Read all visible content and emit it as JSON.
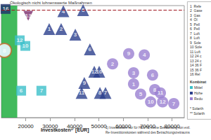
{
  "chart_data": {
    "type": "scatter",
    "annotation": "Ökologisch nicht lohnenswerte Maßnahmen",
    "x_label": "Investkosten¹⁾ [EUR]",
    "footnote": [
      "1) Investkosten nur für HEUTE, keine Betrachtung von evtl.",
      "Re-Investitionskosten während des Betrachtungszeitraums"
    ],
    "xlim": [
      10000,
      85000
    ],
    "xticks": [
      20000,
      30000,
      40000,
      50000,
      60000,
      70000,
      80000
    ],
    "ylim": [
      0,
      100
    ],
    "tick_labels": "x",
    "grid": false,
    "threshold_line": {
      "y": 96,
      "color": "#a0141e",
      "line_style": "dashed"
    },
    "band": {
      "x": [
        10000,
        16500
      ],
      "color": "#2db34a"
    },
    "series": [
      {
        "marker": "triangle",
        "color": "#2b3f8c",
        "values": [
          [
            35400,
            95
          ],
          [
            43500,
            96
          ],
          [
            29600,
            79
          ],
          [
            34500,
            79
          ],
          [
            40300,
            74
          ],
          [
            46300,
            61
          ],
          [
            48100,
            41
          ],
          [
            50100,
            41
          ],
          [
            44000,
            31
          ],
          [
            42900,
            22
          ],
          [
            50400,
            22
          ],
          [
            52700,
            22
          ]
        ],
        "point_labels": [
          "4",
          "5",
          "1",
          "2",
          "3",
          "6",
          "12",
          "10",
          "9",
          "11",
          "8",
          "7"
        ]
      },
      {
        "marker": "square",
        "color": "#1f2f6e",
        "values": [
          [
            11700,
            97
          ]
        ],
        "point_labels": [
          "16"
        ]
      },
      {
        "marker": "inverted_triangle",
        "color": "#7a2a6a",
        "values": [
          [
            21000,
            91
          ]
        ],
        "point_labels": [
          "13"
        ]
      },
      {
        "marker": "square",
        "color": "#3bbfc9",
        "values": [
          [
            11200,
            60
          ],
          [
            17500,
            69
          ],
          [
            19800,
            64
          ],
          [
            18100,
            24
          ],
          [
            26400,
            24
          ]
        ],
        "point_labels": [
          "8",
          "12",
          "10",
          "6",
          "7"
        ]
      },
      {
        "marker": "ring",
        "color": "#c0662a",
        "values": [
          [
            11200,
            60
          ]
        ]
      },
      {
        "marker": "circle",
        "color": "#9a7fd1",
        "values": [
          [
            62200,
            57
          ],
          [
            68600,
            56
          ],
          [
            55600,
            48
          ],
          [
            64200,
            40
          ],
          [
            72000,
            38
          ],
          [
            64200,
            30
          ],
          [
            67100,
            21
          ],
          [
            72900,
            25
          ],
          [
            75200,
            22
          ],
          [
            76100,
            14
          ],
          [
            71200,
            14
          ],
          [
            80700,
            12.5
          ]
        ],
        "point_labels": [
          "9",
          "4",
          "2",
          "3",
          "6",
          "1",
          "5",
          "8",
          "11",
          "12",
          "10",
          "7"
        ]
      }
    ],
    "side_panel": {
      "items": [
        "1  Refe",
        "2  Gase",
        "3  Gas",
        "4  Öl",
        "5  Pell",
        "6  Pell",
        "7  Luft",
        "8  Luft",
        "9  Sole",
        "10 Sole",
        "11 Luft",
        "12 24 c",
        "13 24 c",
        "14 36 F",
        "15 36 F",
        "16 Rel"
      ],
      "heading": "Kombinat",
      "entries": [
        {
          "label": "Mittel",
          "color": "#3bbfc9"
        },
        {
          "label": "Hohe",
          "color": "#2b3f8c"
        },
        {
          "label": "Redu",
          "color": "#9a7fd1"
        }
      ],
      "notes": [
        "* Solarth",
        "** Solarth"
      ]
    }
  }
}
